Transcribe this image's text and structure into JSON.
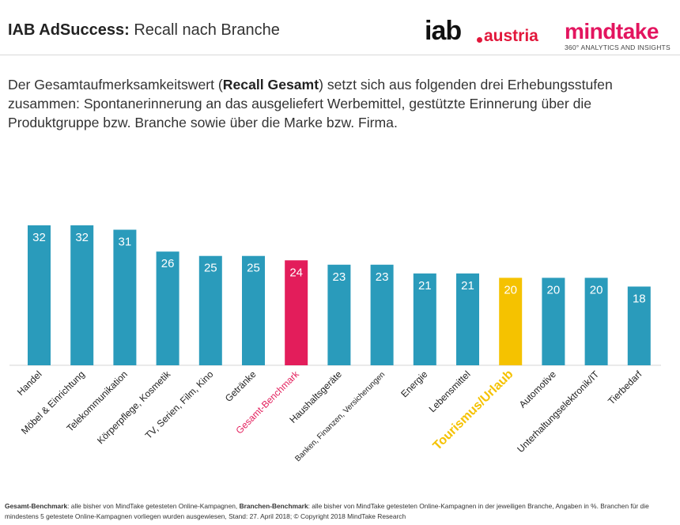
{
  "header": {
    "title_bold": "IAB AdSuccess:",
    "title_rest": "Recall nach Branche",
    "logo_iab_main": "iab",
    "logo_iab_sub": "austria",
    "logo_mindtake_main": "mindtake",
    "logo_mindtake_sub": "360° ANALYTICS AND INSIGHTS"
  },
  "intro": {
    "part1": "Der Gesamtaufmerksamkeitswert (",
    "bold": "Recall Gesamt",
    "part2": ") setzt sich aus folgenden drei Erhebungsstufen zusammen: Spontanerinnerung an das ausgeliefert Werbemittel, gestützte Erinnerung über die Produktgruppe bzw. Branche sowie über die Marke bzw. Firma."
  },
  "chart_data": {
    "type": "bar",
    "title": "",
    "xlabel": "",
    "ylabel": "",
    "ylim": [
      0,
      32
    ],
    "grid": false,
    "categories": [
      "Handel",
      "Möbel & Einrichtung",
      "Telekommunikation",
      "Körperpflege, Kosmetik",
      "TV, Serien, Film, Kino",
      "Getränke",
      "Gesamt-Benchmark",
      "Haushaltsgeräte",
      "Banken, Finanzen, Versicherungen",
      "Energie",
      "Lebensmittel",
      "Tourismus/Urlaub",
      "Automotive",
      "Unterhaltungselektronik/IT",
      "Tierbedarf"
    ],
    "values": [
      32,
      32,
      31,
      26,
      25,
      25,
      24,
      23,
      23,
      21,
      21,
      20,
      20,
      20,
      18
    ],
    "bar_colors": [
      "#2a9bbb",
      "#2a9bbb",
      "#2a9bbb",
      "#2a9bbb",
      "#2a9bbb",
      "#2a9bbb",
      "#e31d5b",
      "#2a9bbb",
      "#2a9bbb",
      "#2a9bbb",
      "#2a9bbb",
      "#f5c200",
      "#2a9bbb",
      "#2a9bbb",
      "#2a9bbb"
    ],
    "label_colors": [
      "#222222",
      "#222222",
      "#222222",
      "#222222",
      "#222222",
      "#222222",
      "#e31d5b",
      "#222222",
      "#222222",
      "#222222",
      "#222222",
      "#f5c200",
      "#222222",
      "#222222",
      "#222222"
    ]
  },
  "footnote": {
    "b1": "Gesamt-Benchmark",
    "t1": ": alle bisher von MindTake getesteten Online-Kampagnen, ",
    "b2": "Branchen-Benchmark",
    "t2": ": alle bisher von MindTake getesteten Online-Kampagnen in der jeweiligen Branche, Angaben in %. Branchen für die mindestens 5 getestete Online-Kampagnen vorliegen wurden ausgewiesen, Stand: 27. April 2018; © Copyright 2018 MindTake Research"
  },
  "colors": {
    "bar_default": "#2a9bbb",
    "bar_benchmark": "#e31d5b",
    "bar_highlight": "#f5c200",
    "brand_iab": "#e2173b",
    "brand_mindtake": "#e3155f"
  }
}
